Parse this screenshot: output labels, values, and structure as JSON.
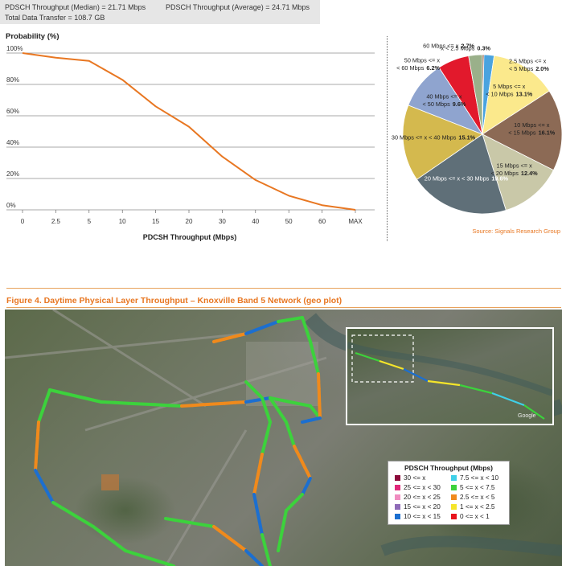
{
  "stats": {
    "median": "PDSCH Throughput (Median) = 21.71 Mbps",
    "average": "PDSCH Throughput (Average) = 24.71 Mbps",
    "total": "Total Data Transfer = 108.7 GB"
  },
  "chart_data": [
    {
      "type": "line",
      "ylabel": "Probability (%)",
      "xlabel": "PDCSH Throughput (Mbps)",
      "categories": [
        "0",
        "2.5",
        "5",
        "10",
        "15",
        "20",
        "30",
        "40",
        "50",
        "60",
        "MAX"
      ],
      "yticks": [
        "0%",
        "20%",
        "40%",
        "60%",
        "80%",
        "100%"
      ],
      "ylim": [
        0,
        100
      ],
      "series": [
        {
          "values": [
            100,
            97,
            95,
            83,
            66,
            53,
            34,
            19,
            9,
            3,
            0
          ]
        }
      ],
      "grid": "horizontal",
      "color": "#e87722"
    },
    {
      "type": "pie",
      "slices": [
        {
          "label": "x < 2.5 Mbps",
          "value": 0.3,
          "color": "#7a3b24"
        },
        {
          "label": "2.5 Mbps <= x < 5 Mbps",
          "value": 2.0,
          "color": "#4aa3df"
        },
        {
          "label": "5 Mbps <= x < 10 Mbps",
          "value": 13.1,
          "color": "#fbe98c"
        },
        {
          "label": "10 Mbps <= x < 15 Mbps",
          "value": 16.1,
          "color": "#8c6a55"
        },
        {
          "label": "15 Mbps <= x < 20 Mbps",
          "value": 12.4,
          "color": "#c9c8a8"
        },
        {
          "label": "20 Mbps <= x < 30 Mbps",
          "value": 19.6,
          "color": "#5f6f78"
        },
        {
          "label": "30 Mbps <= x < 40 Mbps",
          "value": 15.1,
          "color": "#d4b94e"
        },
        {
          "label": "40 Mbps <= x < 50 Mbps",
          "value": 9.6,
          "color": "#8fa4cf"
        },
        {
          "label": "50 Mbps <= x < 60 Mbps",
          "value": 6.2,
          "color": "#e2192c"
        },
        {
          "label": "60 Mbps <= x",
          "value": 2.7,
          "color": "#9ab08a"
        }
      ],
      "labels": [
        {
          "lines": [
            "x < 2.5 Mbps"
          ],
          "pct": "0.3%"
        },
        {
          "lines": [
            "2.5 Mbps <= x",
            "< 5 Mbps"
          ],
          "pct": "2.0%"
        },
        {
          "lines": [
            "5 Mbps <= x",
            "< 10 Mbps"
          ],
          "pct": "13.1%"
        },
        {
          "lines": [
            "10 Mbps <= x",
            "< 15 Mbps"
          ],
          "pct": "16.1%"
        },
        {
          "lines": [
            "15 Mbps <= x",
            "< 20 Mbps"
          ],
          "pct": "12.4%"
        },
        {
          "lines": [
            "20 Mbps <= x < 30 Mbps"
          ],
          "pct": "19.6%"
        },
        {
          "lines": [
            "30 Mbps <= x < 40 Mbps"
          ],
          "pct": "15.1%"
        },
        {
          "lines": [
            "40 Mbps <= x",
            "< 50 Mbps"
          ],
          "pct": "9.6%"
        },
        {
          "lines": [
            "50 Mbps <= x",
            "< 60 Mbps"
          ],
          "pct": "6.2%"
        },
        {
          "lines": [
            "60 Mbps <= x"
          ],
          "pct": "2.7%"
        }
      ],
      "source": "Source: Signals Research Group"
    }
  ],
  "figure_title": "Figure 4. Daytime Physical Layer Throughput – Knoxville Band 5 Network (geo plot)",
  "map": {
    "inset_watermark": "Google",
    "legend": {
      "title": "PDSCH Throughput (Mbps)",
      "items": [
        {
          "label": "30 <= x",
          "color": "#8b0a3a"
        },
        {
          "label": "7.5 <= x < 10",
          "color": "#3fd0e8"
        },
        {
          "label": "25 <= x < 30",
          "color": "#e0287a"
        },
        {
          "label": "5 <= x < 7.5",
          "color": "#3cd23c"
        },
        {
          "label": "20 <= x < 25",
          "color": "#f08cc0"
        },
        {
          "label": "2.5 <= x < 5",
          "color": "#f08a1c"
        },
        {
          "label": "15 <= x < 20",
          "color": "#8e6bb8"
        },
        {
          "label": "1 <= x < 2.5",
          "color": "#f5e52a"
        },
        {
          "label": "10 <= x < 15",
          "color": "#1c6fd0"
        },
        {
          "label": "0 <= x < 1",
          "color": "#e8141c"
        }
      ]
    }
  }
}
